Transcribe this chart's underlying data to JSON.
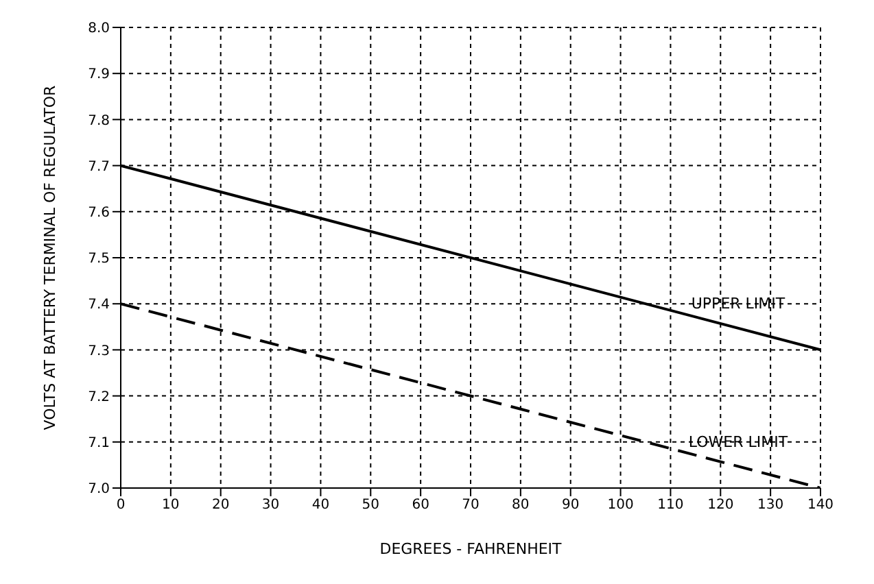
{
  "chart_data": {
    "type": "line",
    "xlabel": "DEGREES - FAHRENHEIT",
    "ylabel": "VOLTS AT BATTERY TERMINAL OF REGULATOR",
    "x": [
      0,
      140
    ],
    "series": [
      {
        "name": "UPPER LIMIT",
        "color": "#000000",
        "values": [
          7.7,
          7.3
        ],
        "line_style": "solid"
      },
      {
        "name": "LOWER LIMIT",
        "color": "#000000",
        "values": [
          7.4,
          7.0
        ],
        "line_style": "dashed"
      }
    ],
    "xlim": [
      0,
      140
    ],
    "xticks": [
      0,
      10,
      20,
      30,
      40,
      50,
      60,
      70,
      80,
      90,
      100,
      110,
      120,
      130,
      140
    ],
    "ylim": [
      7.0,
      8.0
    ],
    "yticks": [
      {
        "value": 7.0,
        "label": "7.0"
      },
      7.1,
      7.2,
      7.3,
      7.4,
      7.5,
      7.6,
      7.7,
      7.8,
      7.9,
      {
        "value": 8.0,
        "label": "8.0"
      }
    ],
    "grid": true,
    "legend": false,
    "marker": "none"
  }
}
